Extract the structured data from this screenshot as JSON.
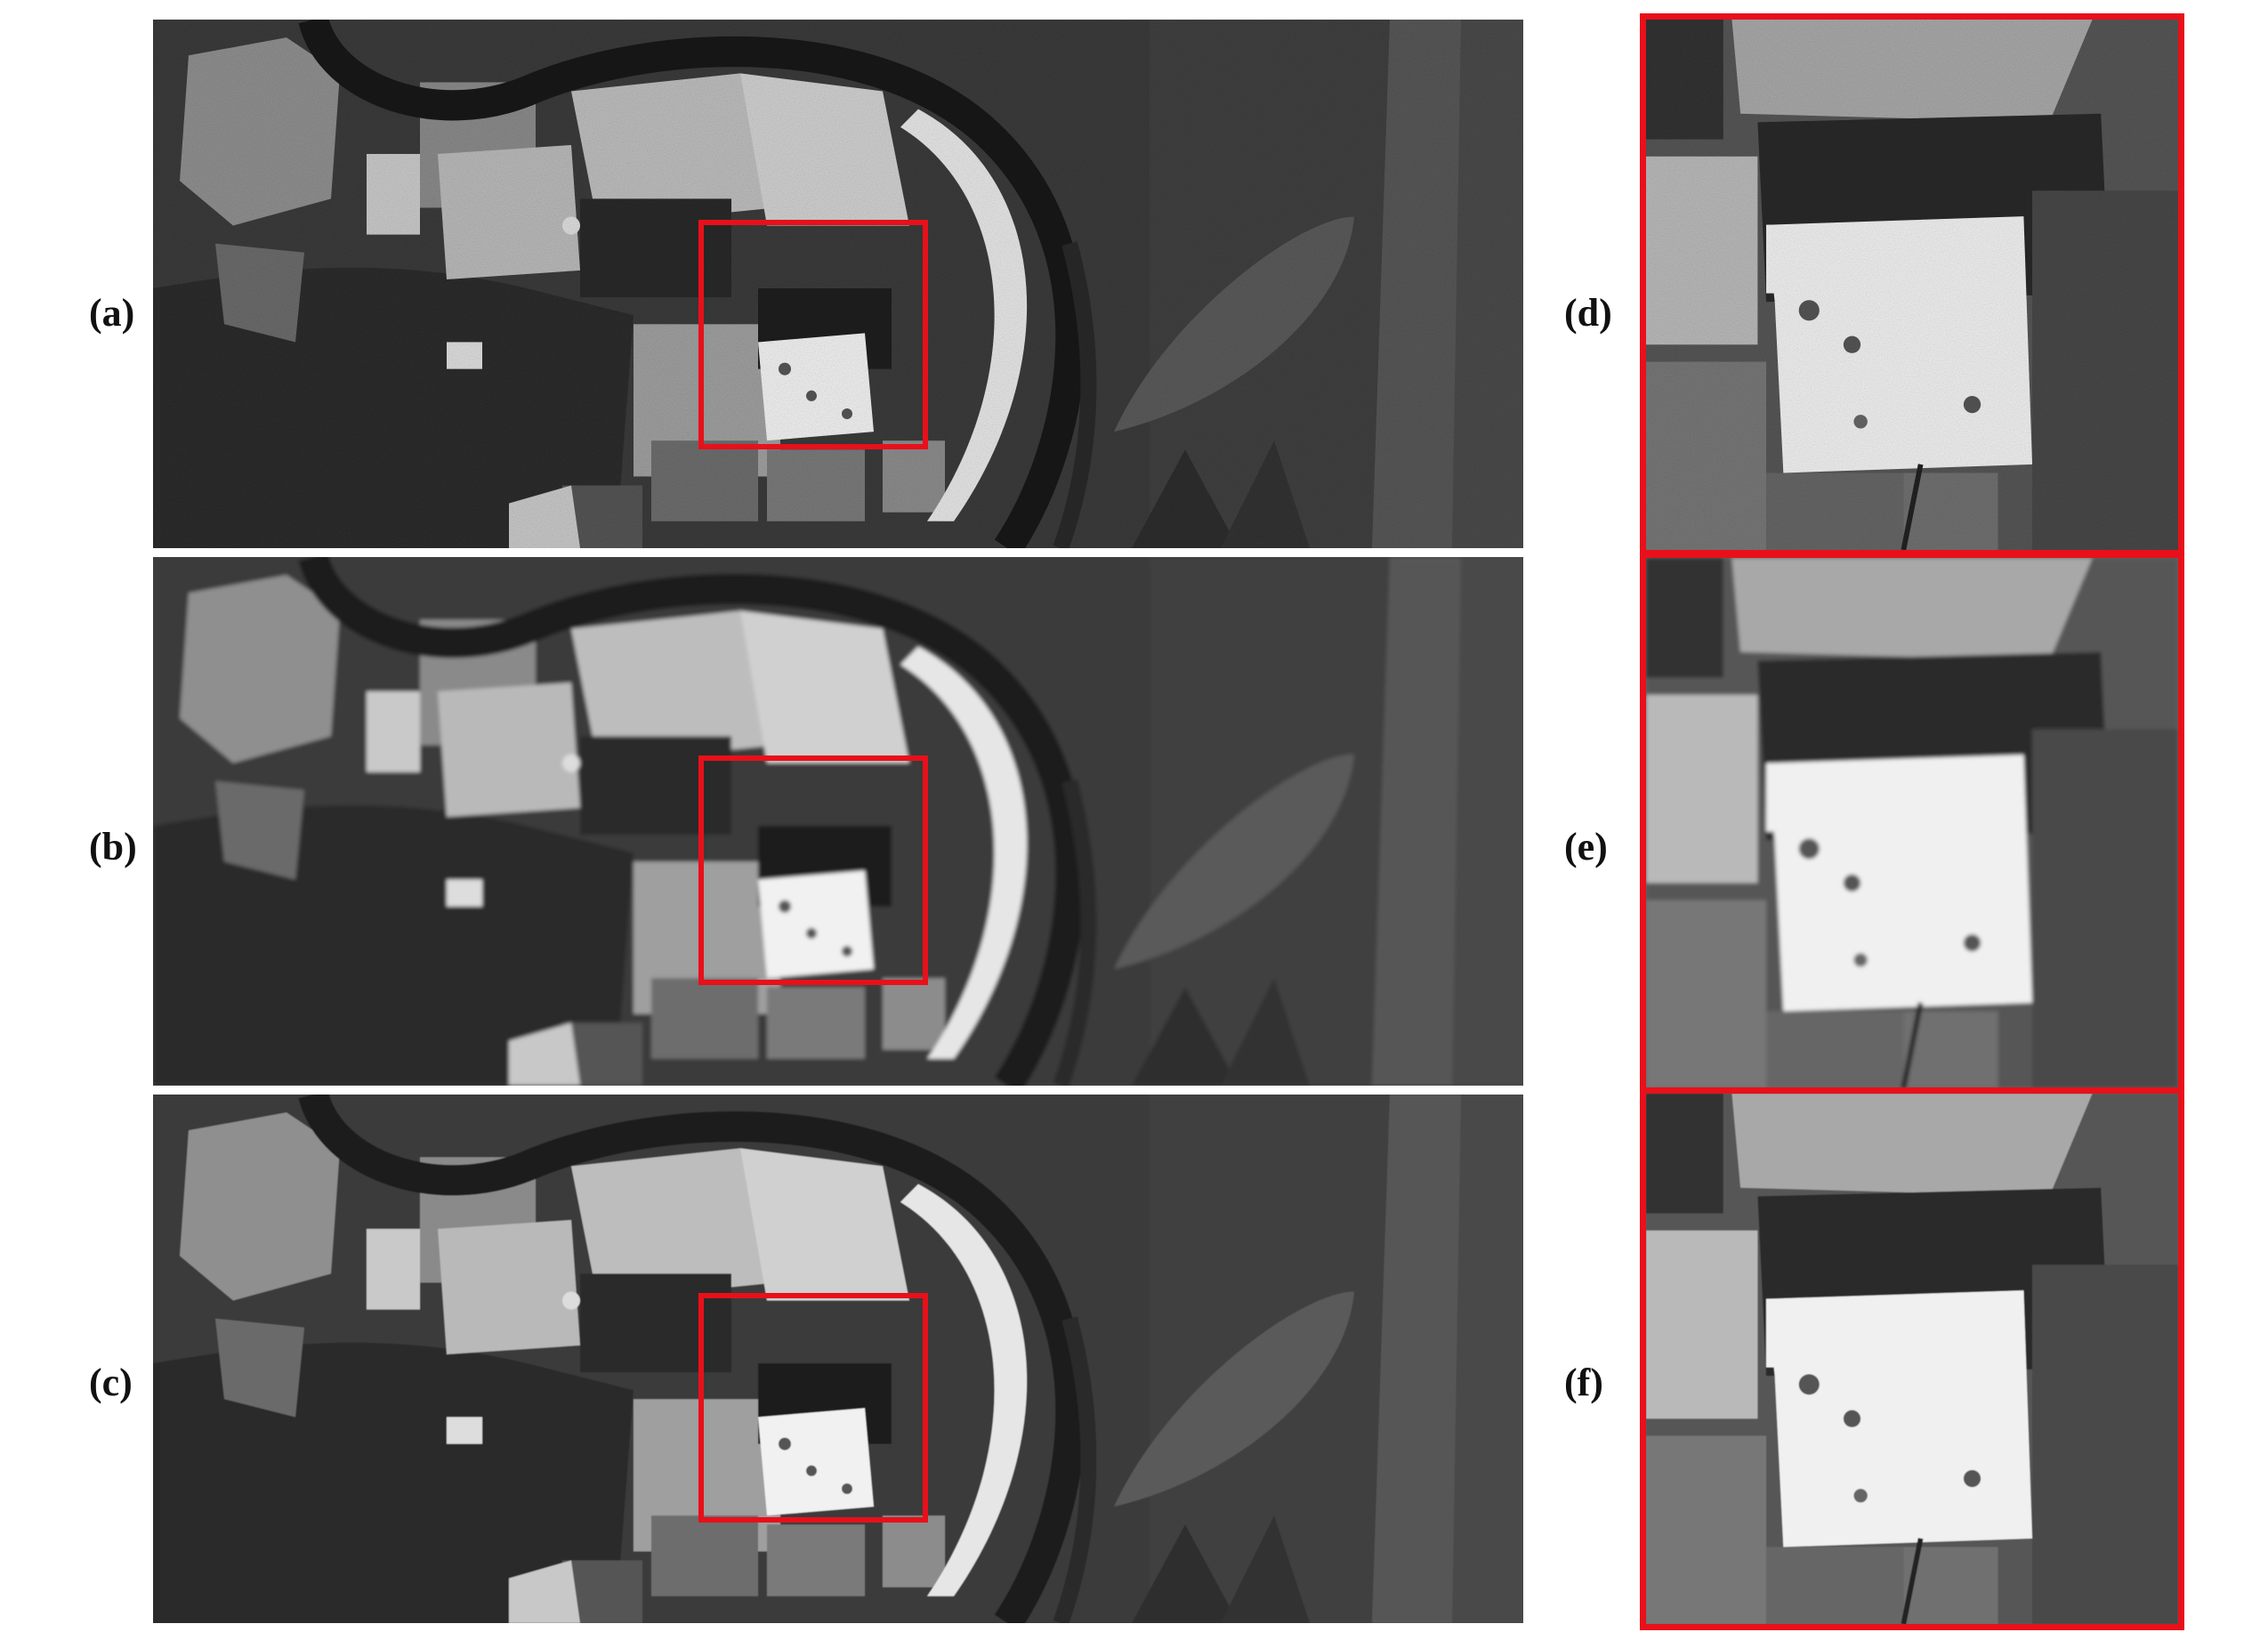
{
  "labels": {
    "a": "(a)",
    "b": "(b)",
    "c": "(c)",
    "d": "(d)",
    "e": "(e)",
    "f": "(f)"
  },
  "colors": {
    "highlight": "#e8101a",
    "background": "#ffffff"
  }
}
